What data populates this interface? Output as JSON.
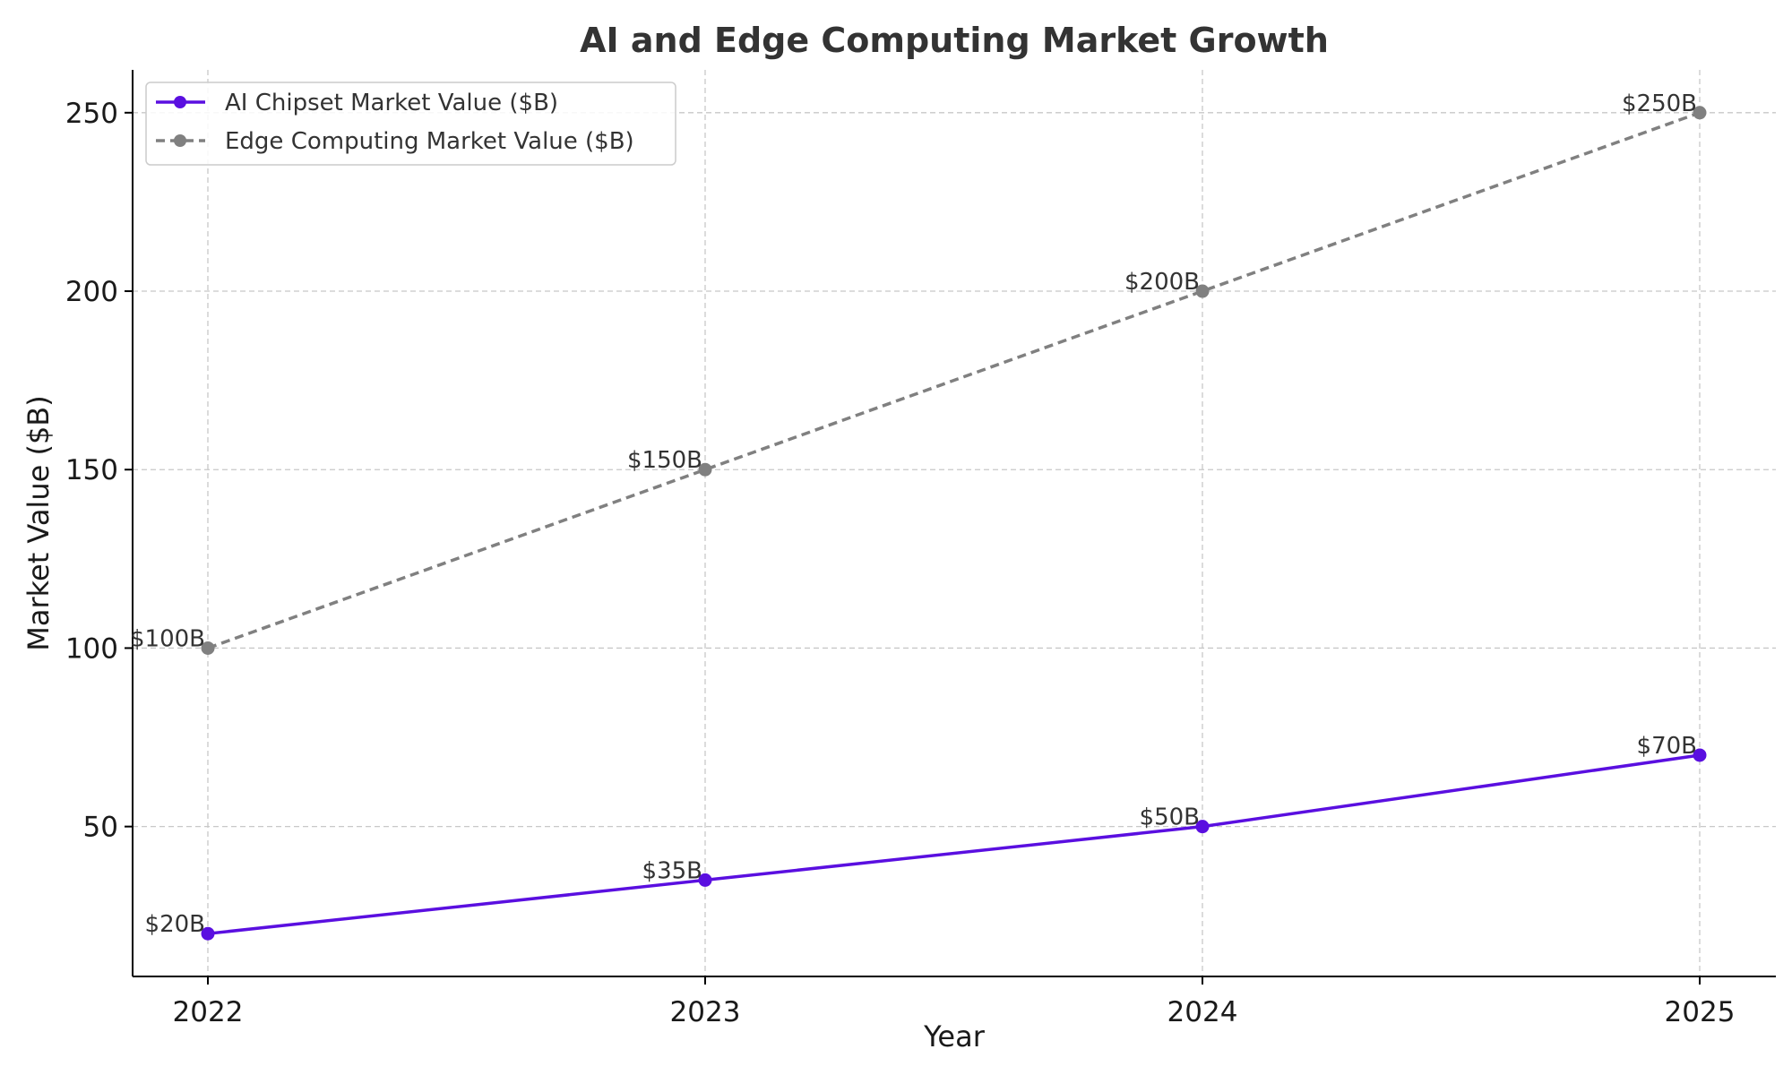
{
  "chart_data": {
    "type": "line",
    "title": "AI and Edge Computing Market Growth",
    "xlabel": "Year",
    "ylabel": "Market Value ($B)",
    "x": [
      "2022",
      "2023",
      "2024",
      "2025"
    ],
    "ylim": [
      8,
      262
    ],
    "yticks": [
      50,
      100,
      150,
      200,
      250
    ],
    "grid": true,
    "legend_position": "top-left",
    "series": [
      {
        "name": "AI Chipset Market Value ($B)",
        "values": [
          20,
          35,
          50,
          70
        ],
        "labels": [
          "$20B",
          "$35B",
          "$50B",
          "$70B"
        ],
        "color": "#5a0fe0",
        "line_style": "solid",
        "marker": "circle"
      },
      {
        "name": "Edge Computing Market Value ($B)",
        "values": [
          100,
          150,
          200,
          250
        ],
        "labels": [
          "$100B",
          "$150B",
          "$200B",
          "$250B"
        ],
        "color": "#808080",
        "line_style": "dashed",
        "marker": "circle"
      }
    ]
  }
}
